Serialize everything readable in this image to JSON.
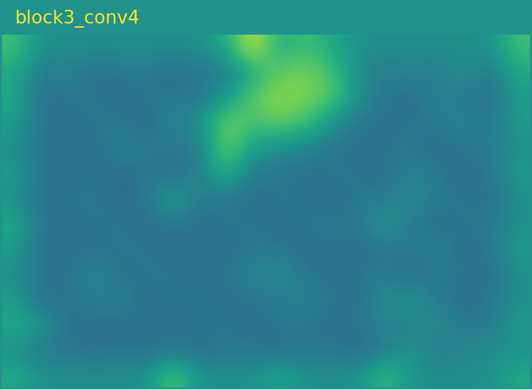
{
  "chart_data": {
    "type": "heatmap",
    "title": "block3_conv4",
    "tick_labels": false,
    "zlim": [
      0,
      1
    ],
    "values": [
      [
        0.7,
        0.5,
        0.5,
        0.5,
        0.5,
        0.5,
        0.5,
        0.5,
        0.6,
        0.95,
        0.6,
        0.7,
        0.6,
        0.5,
        0.5,
        0.5,
        0.5,
        0.5,
        0.5,
        0.7
      ],
      [
        0.6,
        0.4,
        0.45,
        0.35,
        0.4,
        0.4,
        0.35,
        0.4,
        0.4,
        0.6,
        0.75,
        0.8,
        0.7,
        0.5,
        0.4,
        0.45,
        0.4,
        0.5,
        0.4,
        0.6
      ],
      [
        0.6,
        0.35,
        0.4,
        0.4,
        0.35,
        0.4,
        0.4,
        0.4,
        0.55,
        0.75,
        0.85,
        0.8,
        0.75,
        0.5,
        0.4,
        0.35,
        0.45,
        0.4,
        0.35,
        0.55
      ],
      [
        0.55,
        0.4,
        0.35,
        0.4,
        0.4,
        0.35,
        0.45,
        0.5,
        0.8,
        0.7,
        0.75,
        0.7,
        0.5,
        0.4,
        0.35,
        0.4,
        0.4,
        0.45,
        0.4,
        0.55
      ],
      [
        0.5,
        0.35,
        0.4,
        0.35,
        0.45,
        0.4,
        0.4,
        0.4,
        0.8,
        0.55,
        0.5,
        0.45,
        0.4,
        0.35,
        0.4,
        0.4,
        0.35,
        0.4,
        0.4,
        0.5
      ],
      [
        0.55,
        0.4,
        0.35,
        0.4,
        0.35,
        0.4,
        0.35,
        0.45,
        0.65,
        0.4,
        0.4,
        0.35,
        0.4,
        0.4,
        0.35,
        0.45,
        0.4,
        0.35,
        0.4,
        0.55
      ],
      [
        0.5,
        0.35,
        0.4,
        0.4,
        0.35,
        0.4,
        0.6,
        0.4,
        0.4,
        0.35,
        0.4,
        0.4,
        0.35,
        0.4,
        0.4,
        0.5,
        0.4,
        0.4,
        0.35,
        0.5
      ],
      [
        0.6,
        0.4,
        0.35,
        0.4,
        0.4,
        0.35,
        0.4,
        0.35,
        0.4,
        0.4,
        0.35,
        0.4,
        0.4,
        0.4,
        0.55,
        0.4,
        0.35,
        0.4,
        0.4,
        0.5
      ],
      [
        0.55,
        0.35,
        0.4,
        0.35,
        0.4,
        0.4,
        0.35,
        0.4,
        0.35,
        0.4,
        0.4,
        0.35,
        0.4,
        0.35,
        0.4,
        0.4,
        0.45,
        0.35,
        0.4,
        0.55
      ],
      [
        0.5,
        0.4,
        0.35,
        0.5,
        0.35,
        0.4,
        0.4,
        0.35,
        0.4,
        0.45,
        0.5,
        0.4,
        0.35,
        0.4,
        0.4,
        0.35,
        0.4,
        0.4,
        0.35,
        0.5
      ],
      [
        0.55,
        0.35,
        0.4,
        0.4,
        0.45,
        0.35,
        0.4,
        0.4,
        0.35,
        0.4,
        0.4,
        0.45,
        0.4,
        0.35,
        0.5,
        0.55,
        0.4,
        0.35,
        0.4,
        0.5
      ],
      [
        0.6,
        0.55,
        0.35,
        0.4,
        0.35,
        0.4,
        0.35,
        0.4,
        0.4,
        0.35,
        0.4,
        0.4,
        0.35,
        0.4,
        0.45,
        0.4,
        0.5,
        0.4,
        0.4,
        0.55
      ],
      [
        0.5,
        0.4,
        0.4,
        0.35,
        0.4,
        0.35,
        0.4,
        0.35,
        0.4,
        0.4,
        0.35,
        0.4,
        0.4,
        0.35,
        0.4,
        0.55,
        0.4,
        0.45,
        0.5,
        0.5
      ],
      [
        0.6,
        0.5,
        0.5,
        0.5,
        0.5,
        0.5,
        0.75,
        0.5,
        0.5,
        0.5,
        0.6,
        0.5,
        0.5,
        0.5,
        0.7,
        0.5,
        0.5,
        0.5,
        0.5,
        0.6
      ]
    ]
  }
}
